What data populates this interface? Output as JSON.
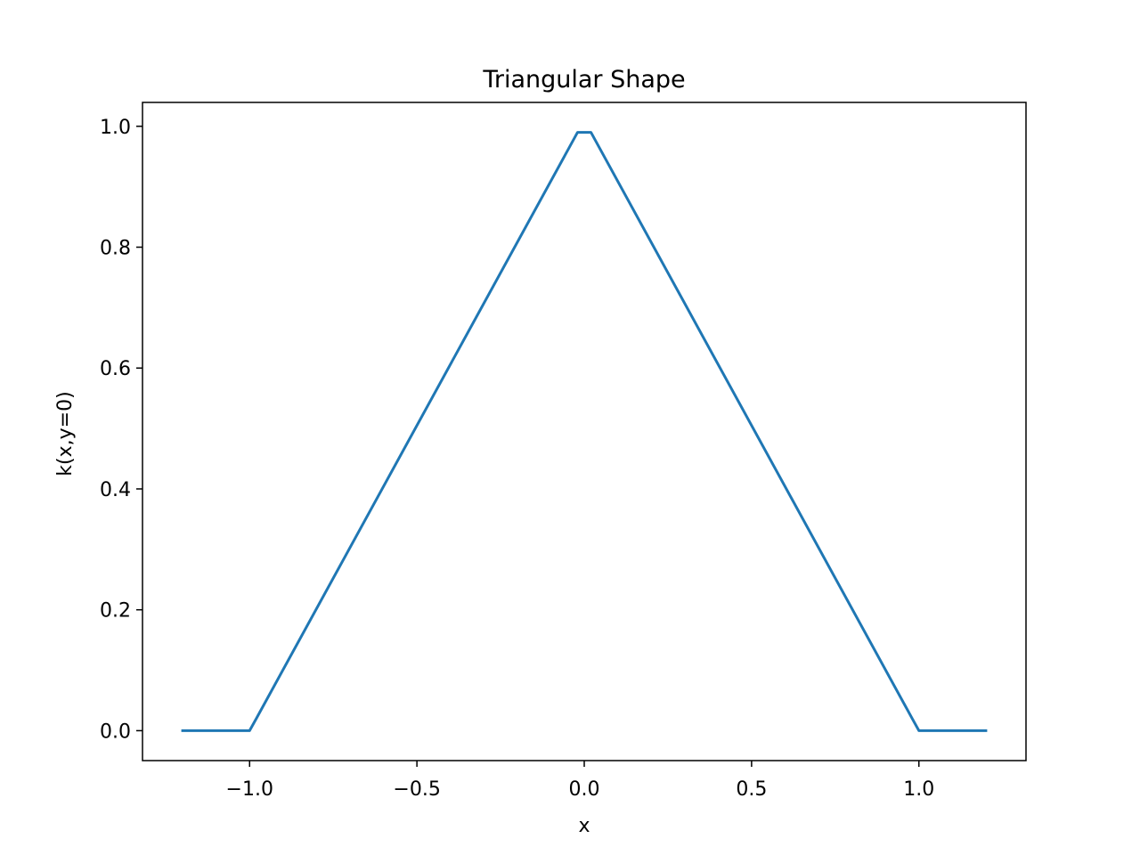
{
  "chart_data": {
    "type": "line",
    "title": "Triangular Shape",
    "xlabel": "x",
    "ylabel": "k(x,y=0)",
    "xlim": [
      -1.32,
      1.32
    ],
    "ylim": [
      -0.0495,
      1.0395
    ],
    "xticks": [
      -1.0,
      -0.5,
      0.0,
      0.5,
      1.0
    ],
    "xtick_labels": [
      "−1.0",
      "−0.5",
      "0.0",
      "0.5",
      "1.0"
    ],
    "yticks": [
      0.0,
      0.2,
      0.4,
      0.6,
      0.8,
      1.0
    ],
    "ytick_labels": [
      "0.0",
      "0.2",
      "0.4",
      "0.6",
      "0.8",
      "1.0"
    ],
    "grid": false,
    "series": [
      {
        "color": "#1f77b4",
        "x": [
          -1.2,
          -1.0,
          -0.98,
          -0.02,
          0.02,
          0.98,
          1.0,
          1.2
        ],
        "y": [
          0.0,
          0.0,
          0.02,
          0.99,
          0.99,
          0.02,
          0.0,
          0.0
        ]
      }
    ]
  }
}
